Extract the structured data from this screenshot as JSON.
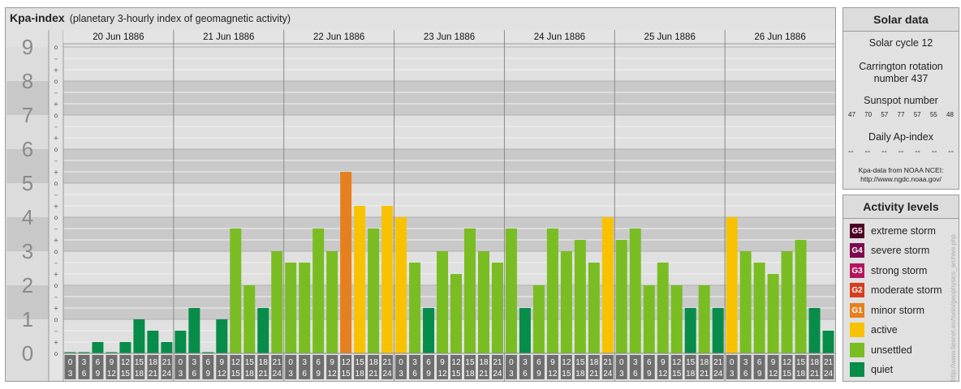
{
  "title": "Kpa-index",
  "subtitle": "(planetary 3-hourly index of geomagnetic activity)",
  "chart_data": {
    "type": "bar",
    "title": "Kpa-index",
    "ylim": [
      0,
      9
    ],
    "y_ticks": [
      "0",
      "1",
      "2",
      "3",
      "4",
      "5",
      "6",
      "7",
      "8",
      "9"
    ],
    "minor_ticks": [
      "o",
      "+",
      "–"
    ],
    "days": [
      "20 Jun 1886",
      "21 Jun 1886",
      "22 Jun 1886",
      "23 Jun 1886",
      "24 Jun 1886",
      "25 Jun 1886",
      "26 Jun 1886"
    ],
    "interval_labels": [
      [
        "0",
        "3"
      ],
      [
        "3",
        "6"
      ],
      [
        "6",
        "9"
      ],
      [
        "9",
        "12"
      ],
      [
        "12",
        "15"
      ],
      [
        "15",
        "18"
      ],
      [
        "18",
        "21"
      ],
      [
        "21",
        "24"
      ]
    ],
    "values": [
      [
        0,
        0,
        0.333,
        0,
        0.333,
        1,
        0.667,
        0.333
      ],
      [
        0.667,
        1.333,
        0,
        1,
        3.667,
        2,
        1.333,
        3
      ],
      [
        2.667,
        2.667,
        3.667,
        3,
        5.333,
        4.333,
        3.667,
        4.333
      ],
      [
        4,
        2.667,
        1.333,
        3,
        2.333,
        3.667,
        3,
        2.667
      ],
      [
        3.667,
        1.333,
        2,
        3.667,
        3,
        3.333,
        2.667,
        4
      ],
      [
        3.333,
        3.667,
        2,
        2.667,
        2,
        1.333,
        2,
        1.333
      ],
      [
        4,
        3,
        2.667,
        2.333,
        3,
        3.333,
        1.333,
        0.667
      ]
    ],
    "colors": {
      "quiet": "#078c49",
      "unsettled": "#79bd23",
      "active": "#f8c200",
      "G1": "#e67f1e",
      "G2": "#d53f1e",
      "G3": "#b1165e",
      "G4": "#7c0a4d",
      "G5": "#4d0024"
    }
  },
  "solar": {
    "heading": "Solar data",
    "cycle": "Solar cycle 12",
    "carrington_1": "Carrington rotation",
    "carrington_2": "number 437",
    "sunspot_label": "Sunspot number",
    "sunspots": [
      "47",
      "70",
      "57",
      "77",
      "57",
      "55",
      "48"
    ],
    "ap_label": "Daily Ap-index",
    "ap_values": [
      "--",
      "--",
      "--",
      "--",
      "--",
      "--",
      "--"
    ],
    "credit_1": "Kpa-data from NOAA NCEI:",
    "credit_2": "http://www.ngdc.noaa.gov/"
  },
  "activity": {
    "heading": "Activity levels",
    "levels": [
      {
        "badge": "G5",
        "label": "extreme storm",
        "color": "#4d0024"
      },
      {
        "badge": "G4",
        "label": "severe storm",
        "color": "#7c0a4d"
      },
      {
        "badge": "G3",
        "label": "strong storm",
        "color": "#b1165e"
      },
      {
        "badge": "G2",
        "label": "moderate storm",
        "color": "#d53f1e"
      },
      {
        "badge": "G1",
        "label": "minor storm",
        "color": "#e67f1e"
      },
      {
        "badge": "",
        "label": "active",
        "color": "#f8c200"
      },
      {
        "badge": "",
        "label": "unsettled",
        "color": "#79bd23"
      },
      {
        "badge": "",
        "label": "quiet",
        "color": "#078c49"
      }
    ]
  },
  "watermark": "http://www.tiesnet.eu/tools/geophysics_archive.php"
}
